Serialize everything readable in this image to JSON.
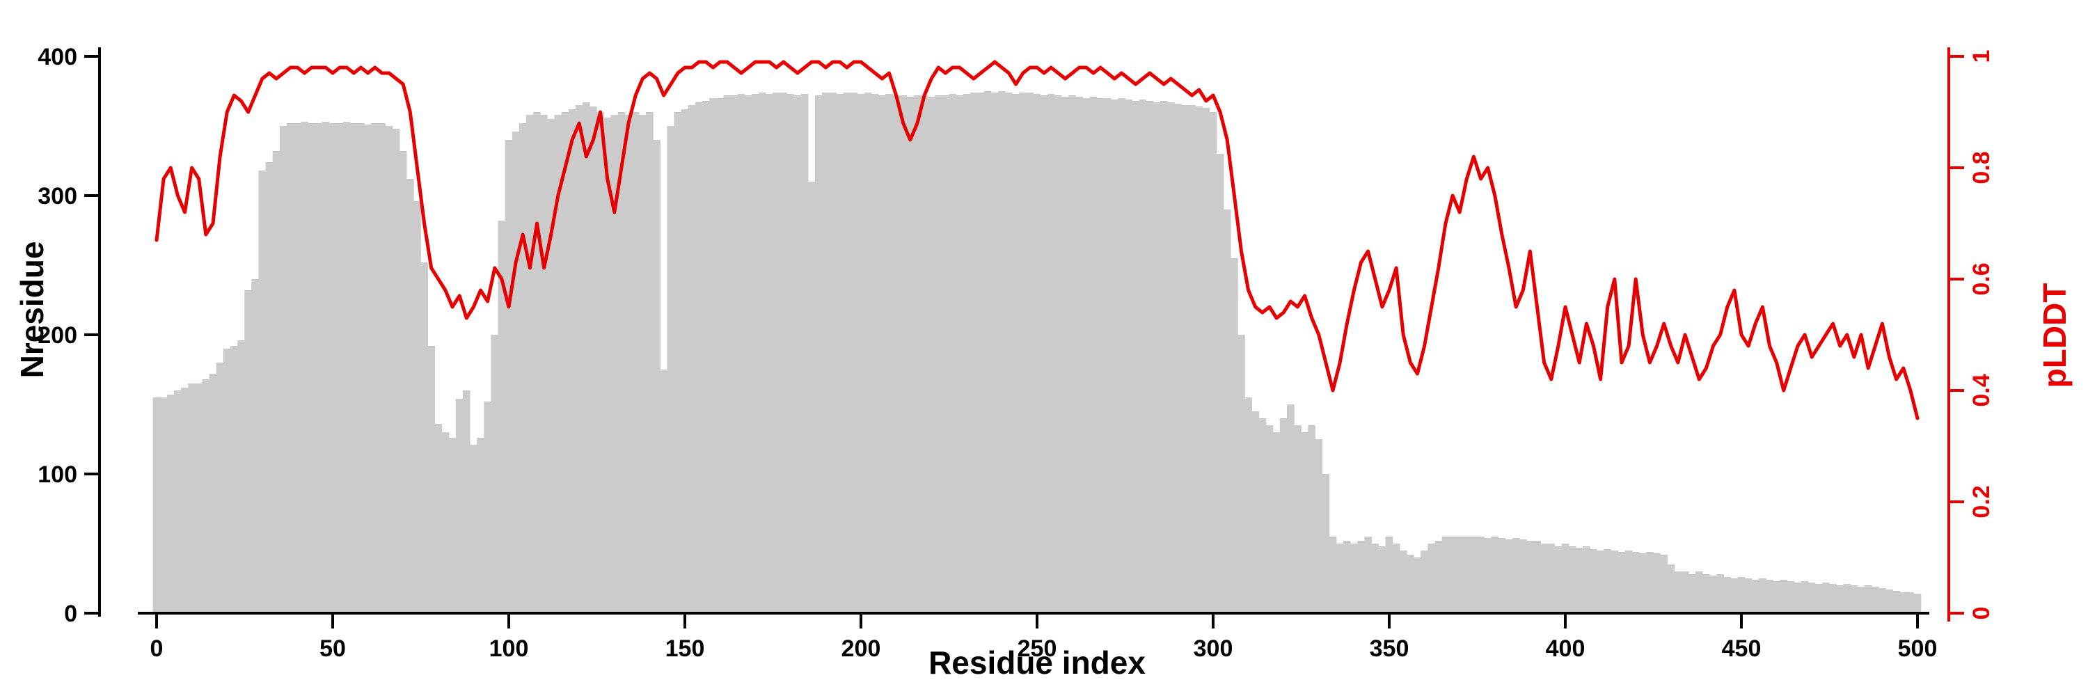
{
  "figure": {
    "colors": {
      "bars": "#cbcbcb",
      "line": "#e60000",
      "axis": "#000000"
    }
  },
  "axes": {
    "x": {
      "label": "Residue index",
      "ticks": [
        0,
        50,
        100,
        150,
        200,
        250,
        300,
        350,
        400,
        450,
        500
      ],
      "range": [
        0,
        500
      ]
    },
    "y_left": {
      "label": "Nresidue",
      "ticks": [
        0,
        100,
        200,
        300,
        400
      ],
      "range": [
        0,
        400
      ]
    },
    "y_right": {
      "label": "pLDDT",
      "ticks": [
        0,
        0.2,
        0.4,
        0.6,
        0.8,
        1
      ],
      "range": [
        0,
        1
      ]
    }
  },
  "chart_data": {
    "type": "bar+line",
    "title": "",
    "xlabel": "Residue index",
    "ylabel_left": "Nresidue",
    "ylabel_right": "pLDDT",
    "xlim": [
      0,
      500
    ],
    "ylim_left": [
      0,
      400
    ],
    "ylim_right": [
      0,
      1
    ],
    "grid": false,
    "legend": "none",
    "x": [
      0,
      2,
      4,
      6,
      8,
      10,
      12,
      14,
      16,
      18,
      20,
      22,
      24,
      26,
      28,
      30,
      32,
      34,
      36,
      38,
      40,
      42,
      44,
      46,
      48,
      50,
      52,
      54,
      56,
      58,
      60,
      62,
      64,
      66,
      68,
      70,
      72,
      74,
      76,
      78,
      80,
      82,
      84,
      86,
      88,
      90,
      92,
      94,
      96,
      98,
      100,
      102,
      104,
      106,
      108,
      110,
      112,
      114,
      116,
      118,
      120,
      122,
      124,
      126,
      128,
      130,
      132,
      134,
      136,
      138,
      140,
      142,
      144,
      146,
      148,
      150,
      152,
      154,
      156,
      158,
      160,
      162,
      164,
      166,
      168,
      170,
      172,
      174,
      176,
      178,
      180,
      182,
      184,
      186,
      188,
      190,
      192,
      194,
      196,
      198,
      200,
      202,
      204,
      206,
      208,
      210,
      212,
      214,
      216,
      218,
      220,
      222,
      224,
      226,
      228,
      230,
      232,
      234,
      236,
      238,
      240,
      242,
      244,
      246,
      248,
      250,
      252,
      254,
      256,
      258,
      260,
      262,
      264,
      266,
      268,
      270,
      272,
      274,
      276,
      278,
      280,
      282,
      284,
      286,
      288,
      290,
      292,
      294,
      296,
      298,
      300,
      302,
      304,
      306,
      308,
      310,
      312,
      314,
      316,
      318,
      320,
      322,
      324,
      326,
      328,
      330,
      332,
      334,
      336,
      338,
      340,
      342,
      344,
      346,
      348,
      350,
      352,
      354,
      356,
      358,
      360,
      362,
      364,
      366,
      368,
      370,
      372,
      374,
      376,
      378,
      380,
      382,
      384,
      386,
      388,
      390,
      392,
      394,
      396,
      398,
      400,
      402,
      404,
      406,
      408,
      410,
      412,
      414,
      416,
      418,
      420,
      422,
      424,
      426,
      428,
      430,
      432,
      434,
      436,
      438,
      440,
      442,
      444,
      446,
      448,
      450,
      452,
      454,
      456,
      458,
      460,
      462,
      464,
      466,
      468,
      470,
      472,
      474,
      476,
      478,
      480,
      482,
      484,
      486,
      488,
      490,
      492,
      494,
      496,
      498,
      500
    ],
    "series": [
      {
        "name": "Nresidue",
        "type": "bar",
        "axis": "left",
        "color": "#cbcbcb",
        "values": [
          155,
          155,
          157,
          160,
          162,
          165,
          165,
          168,
          172,
          180,
          190,
          192,
          196,
          232,
          240,
          318,
          324,
          332,
          350,
          352,
          352,
          353,
          352,
          352,
          353,
          352,
          352,
          353,
          352,
          352,
          351,
          352,
          352,
          350,
          348,
          332,
          312,
          296,
          252,
          192,
          136,
          130,
          126,
          154,
          160,
          121,
          126,
          152,
          200,
          282,
          340,
          346,
          352,
          358,
          360,
          358,
          355,
          358,
          360,
          362,
          365,
          367,
          364,
          360,
          356,
          358,
          360,
          358,
          360,
          358,
          360,
          340,
          175,
          350,
          360,
          362,
          365,
          367,
          368,
          370,
          370,
          372,
          372,
          373,
          372,
          373,
          374,
          373,
          374,
          374,
          373,
          372,
          373,
          310,
          372,
          374,
          374,
          373,
          374,
          374,
          373,
          374,
          373,
          372,
          373,
          372,
          372,
          371,
          372,
          372,
          371,
          372,
          372,
          373,
          372,
          373,
          374,
          374,
          375,
          374,
          375,
          374,
          373,
          374,
          374,
          373,
          372,
          373,
          372,
          371,
          372,
          371,
          370,
          371,
          370,
          370,
          369,
          370,
          369,
          368,
          369,
          368,
          367,
          368,
          367,
          366,
          365,
          365,
          364,
          363,
          360,
          330,
          290,
          255,
          200,
          155,
          145,
          140,
          135,
          130,
          140,
          150,
          135,
          130,
          135,
          125,
          100,
          55,
          50,
          52,
          50,
          52,
          55,
          50,
          48,
          55,
          50,
          45,
          42,
          40,
          45,
          50,
          52,
          55,
          55,
          55,
          55,
          55,
          55,
          54,
          55,
          54,
          53,
          54,
          53,
          52,
          52,
          50,
          50,
          48,
          50,
          48,
          47,
          48,
          46,
          45,
          46,
          45,
          44,
          45,
          44,
          43,
          44,
          43,
          42,
          35,
          30,
          30,
          28,
          30,
          28,
          27,
          28,
          26,
          25,
          26,
          25,
          24,
          25,
          24,
          23,
          24,
          23,
          22,
          23,
          22,
          21,
          22,
          21,
          20,
          21,
          20,
          19,
          20,
          19,
          18,
          17,
          16,
          15,
          15,
          14
        ]
      },
      {
        "name": "pLDDT",
        "type": "line",
        "axis": "right",
        "color": "#e60000",
        "values": [
          0.67,
          0.78,
          0.8,
          0.75,
          0.72,
          0.8,
          0.78,
          0.68,
          0.7,
          0.82,
          0.9,
          0.93,
          0.92,
          0.9,
          0.93,
          0.96,
          0.97,
          0.96,
          0.97,
          0.98,
          0.98,
          0.97,
          0.98,
          0.98,
          0.98,
          0.97,
          0.98,
          0.98,
          0.97,
          0.98,
          0.97,
          0.98,
          0.97,
          0.97,
          0.96,
          0.95,
          0.9,
          0.8,
          0.7,
          0.62,
          0.6,
          0.58,
          0.55,
          0.57,
          0.53,
          0.55,
          0.58,
          0.56,
          0.62,
          0.6,
          0.55,
          0.63,
          0.68,
          0.62,
          0.7,
          0.62,
          0.68,
          0.75,
          0.8,
          0.85,
          0.88,
          0.82,
          0.85,
          0.9,
          0.78,
          0.72,
          0.8,
          0.88,
          0.93,
          0.96,
          0.97,
          0.96,
          0.93,
          0.95,
          0.97,
          0.98,
          0.98,
          0.99,
          0.99,
          0.98,
          0.99,
          0.99,
          0.98,
          0.97,
          0.98,
          0.99,
          0.99,
          0.99,
          0.98,
          0.99,
          0.98,
          0.97,
          0.98,
          0.99,
          0.99,
          0.98,
          0.99,
          0.99,
          0.98,
          0.99,
          0.99,
          0.98,
          0.97,
          0.96,
          0.97,
          0.93,
          0.88,
          0.85,
          0.88,
          0.93,
          0.96,
          0.98,
          0.97,
          0.98,
          0.98,
          0.97,
          0.96,
          0.97,
          0.98,
          0.99,
          0.98,
          0.97,
          0.95,
          0.97,
          0.98,
          0.98,
          0.97,
          0.98,
          0.97,
          0.96,
          0.97,
          0.98,
          0.98,
          0.97,
          0.98,
          0.97,
          0.96,
          0.97,
          0.96,
          0.95,
          0.96,
          0.97,
          0.96,
          0.95,
          0.96,
          0.95,
          0.94,
          0.93,
          0.94,
          0.92,
          0.93,
          0.9,
          0.85,
          0.75,
          0.65,
          0.58,
          0.55,
          0.54,
          0.55,
          0.53,
          0.54,
          0.56,
          0.55,
          0.57,
          0.53,
          0.5,
          0.45,
          0.4,
          0.45,
          0.52,
          0.58,
          0.63,
          0.65,
          0.6,
          0.55,
          0.58,
          0.62,
          0.5,
          0.45,
          0.43,
          0.48,
          0.55,
          0.62,
          0.7,
          0.75,
          0.72,
          0.78,
          0.82,
          0.78,
          0.8,
          0.75,
          0.68,
          0.62,
          0.55,
          0.58,
          0.65,
          0.55,
          0.45,
          0.42,
          0.48,
          0.55,
          0.5,
          0.45,
          0.52,
          0.48,
          0.42,
          0.55,
          0.6,
          0.45,
          0.48,
          0.6,
          0.5,
          0.45,
          0.48,
          0.52,
          0.48,
          0.45,
          0.5,
          0.46,
          0.42,
          0.44,
          0.48,
          0.5,
          0.55,
          0.58,
          0.5,
          0.48,
          0.52,
          0.55,
          0.48,
          0.45,
          0.4,
          0.44,
          0.48,
          0.5,
          0.46,
          0.48,
          0.5,
          0.52,
          0.48,
          0.5,
          0.46,
          0.5,
          0.44,
          0.48,
          0.52,
          0.46,
          0.42,
          0.44,
          0.4,
          0.35
        ]
      }
    ]
  }
}
